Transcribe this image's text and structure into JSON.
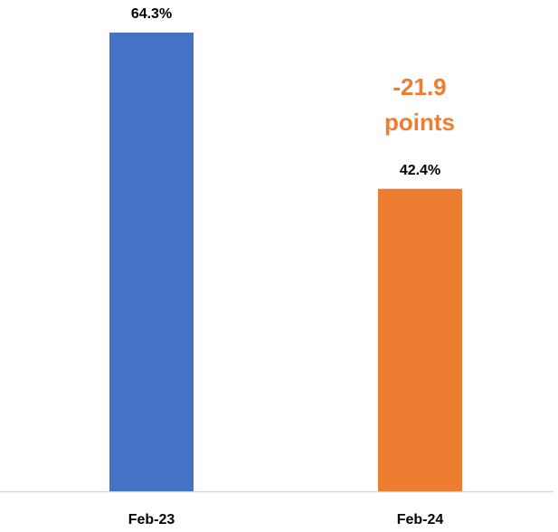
{
  "chart_data": {
    "type": "bar",
    "categories": [
      "Feb-23",
      "Feb-24"
    ],
    "values": [
      64.3,
      42.4
    ],
    "value_labels": [
      "64.3%",
      "42.4%"
    ],
    "colors": [
      "#4472c4",
      "#ed7d31"
    ],
    "annotation": [
      "-21.9",
      "points"
    ]
  }
}
